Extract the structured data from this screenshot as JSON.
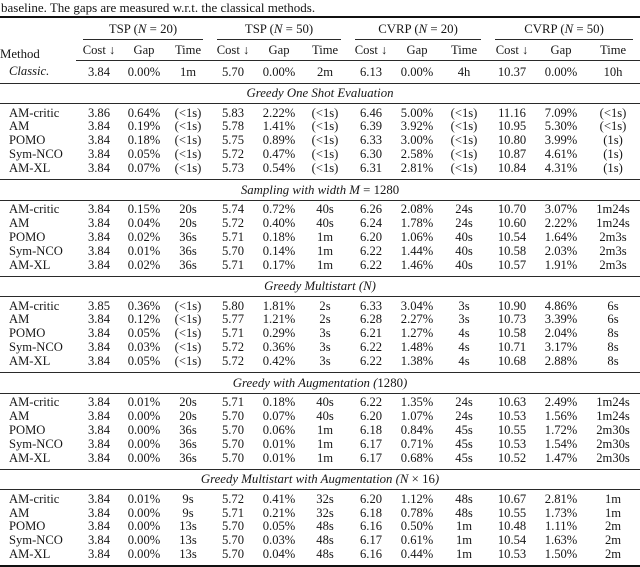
{
  "caption": "baseline. The gaps are measured w.r.t. the classical methods.",
  "table": {
    "method_header": "Method",
    "groups": [
      {
        "label": "TSP (N = 20)"
      },
      {
        "label": "TSP (N = 50)"
      },
      {
        "label": "CVRP (N = 20)"
      },
      {
        "label": "CVRP (N = 50)"
      }
    ],
    "subheaders": [
      "Cost ↓",
      "Gap",
      "Time"
    ],
    "baseline_row": {
      "method": "Classic.",
      "values": [
        "3.84",
        "0.00%",
        "1m",
        "5.70",
        "0.00%",
        "2m",
        "6.13",
        "0.00%",
        "4h",
        "10.37",
        "0.00%",
        "10h"
      ]
    },
    "sections": [
      {
        "title": "Greedy One Shot Evaluation",
        "rows": [
          {
            "method": "AM-critic",
            "values": [
              "3.86",
              "0.64%",
              "(<1s)",
              "5.83",
              "2.22%",
              "(<1s)",
              "6.46",
              "5.00%",
              "(<1s)",
              "11.16",
              "7.09%",
              "(<1s)"
            ]
          },
          {
            "method": "AM",
            "values": [
              "3.84",
              "0.19%",
              "(<1s)",
              "5.78",
              "1.41%",
              "(<1s)",
              "6.39",
              "3.92%",
              "(<1s)",
              "10.95",
              "5.30%",
              "(<1s)"
            ]
          },
          {
            "method": "POMO",
            "values": [
              "3.84",
              "0.18%",
              "(<1s)",
              "5.75",
              "0.89%",
              "(<1s)",
              "6.33",
              "3.00%",
              "(<1s)",
              "10.80",
              "3.99%",
              "(1s)"
            ]
          },
          {
            "method": "Sym-NCO",
            "values": [
              "3.84",
              "0.05%",
              "(<1s)",
              "5.72",
              "0.47%",
              "(<1s)",
              "6.30",
              "2.58%",
              "(<1s)",
              "10.87",
              "4.61%",
              "(1s)"
            ]
          },
          {
            "method": "AM-XL",
            "values": [
              "3.84",
              "0.07%",
              "(<1s)",
              "5.73",
              "0.54%",
              "(<1s)",
              "6.31",
              "2.81%",
              "(<1s)",
              "10.84",
              "4.31%",
              "(1s)"
            ]
          }
        ]
      },
      {
        "title": "Sampling with width M = 1280",
        "rows": [
          {
            "method": "AM-critic",
            "values": [
              "3.84",
              "0.15%",
              "20s",
              "5.74",
              "0.72%",
              "40s",
              "6.26",
              "2.08%",
              "24s",
              "10.70",
              "3.07%",
              "1m24s"
            ]
          },
          {
            "method": "AM",
            "values": [
              "3.84",
              "0.04%",
              "20s",
              "5.72",
              "0.40%",
              "40s",
              "6.24",
              "1.78%",
              "24s",
              "10.60",
              "2.22%",
              "1m24s"
            ]
          },
          {
            "method": "POMO",
            "values": [
              "3.84",
              "0.02%",
              "36s",
              "5.71",
              "0.18%",
              "1m",
              "6.20",
              "1.06%",
              "40s",
              "10.54",
              "1.64%",
              "2m3s"
            ]
          },
          {
            "method": "Sym-NCO",
            "values": [
              "3.84",
              "0.01%",
              "36s",
              "5.70",
              "0.14%",
              "1m",
              "6.22",
              "1.44%",
              "40s",
              "10.58",
              "2.03%",
              "2m3s"
            ]
          },
          {
            "method": "AM-XL",
            "values": [
              "3.84",
              "0.02%",
              "36s",
              "5.71",
              "0.17%",
              "1m",
              "6.22",
              "1.46%",
              "40s",
              "10.57",
              "1.91%",
              "2m3s"
            ]
          }
        ]
      },
      {
        "title": "Greedy Multistart (N)",
        "rows": [
          {
            "method": "AM-critic",
            "values": [
              "3.85",
              "0.36%",
              "(<1s)",
              "5.80",
              "1.81%",
              "2s",
              "6.33",
              "3.04%",
              "3s",
              "10.90",
              "4.86%",
              "6s"
            ]
          },
          {
            "method": "AM",
            "values": [
              "3.84",
              "0.12%",
              "(<1s)",
              "5.77",
              "1.21%",
              "2s",
              "6.28",
              "2.27%",
              "3s",
              "10.73",
              "3.39%",
              "6s"
            ]
          },
          {
            "method": "POMO",
            "values": [
              "3.84",
              "0.05%",
              "(<1s)",
              "5.71",
              "0.29%",
              "3s",
              "6.21",
              "1.27%",
              "4s",
              "10.58",
              "2.04%",
              "8s"
            ]
          },
          {
            "method": "Sym-NCO",
            "values": [
              "3.84",
              "0.03%",
              "(<1s)",
              "5.72",
              "0.36%",
              "3s",
              "6.22",
              "1.48%",
              "4s",
              "10.71",
              "3.17%",
              "8s"
            ]
          },
          {
            "method": "AM-XL",
            "values": [
              "3.84",
              "0.05%",
              "(<1s)",
              "5.72",
              "0.42%",
              "3s",
              "6.22",
              "1.38%",
              "4s",
              "10.68",
              "2.88%",
              "8s"
            ]
          }
        ]
      },
      {
        "title": "Greedy with Augmentation (1280)",
        "rows": [
          {
            "method": "AM-critic",
            "values": [
              "3.84",
              "0.01%",
              "20s",
              "5.71",
              "0.18%",
              "40s",
              "6.22",
              "1.35%",
              "24s",
              "10.63",
              "2.49%",
              "1m24s"
            ]
          },
          {
            "method": "AM",
            "values": [
              "3.84",
              "0.00%",
              "20s",
              "5.70",
              "0.07%",
              "40s",
              "6.20",
              "1.07%",
              "24s",
              "10.53",
              "1.56%",
              "1m24s"
            ]
          },
          {
            "method": "POMO",
            "values": [
              "3.84",
              "0.00%",
              "36s",
              "5.70",
              "0.06%",
              "1m",
              "6.18",
              "0.84%",
              "45s",
              "10.55",
              "1.72%",
              "2m30s"
            ]
          },
          {
            "method": "Sym-NCO",
            "values": [
              "3.84",
              "0.00%",
              "36s",
              "5.70",
              "0.01%",
              "1m",
              "6.17",
              "0.71%",
              "45s",
              "10.53",
              "1.54%",
              "2m30s"
            ]
          },
          {
            "method": "AM-XL",
            "values": [
              "3.84",
              "0.00%",
              "36s",
              "5.70",
              "0.01%",
              "1m",
              "6.17",
              "0.68%",
              "45s",
              "10.52",
              "1.47%",
              "2m30s"
            ]
          }
        ]
      },
      {
        "title": "Greedy Multistart with Augmentation (N × 16)",
        "rows": [
          {
            "method": "AM-critic",
            "values": [
              "3.84",
              "0.01%",
              "9s",
              "5.72",
              "0.41%",
              "32s",
              "6.20",
              "1.12%",
              "48s",
              "10.67",
              "2.81%",
              "1m"
            ]
          },
          {
            "method": "AM",
            "values": [
              "3.84",
              "0.00%",
              "9s",
              "5.71",
              "0.21%",
              "32s",
              "6.18",
              "0.78%",
              "48s",
              "10.55",
              "1.73%",
              "1m"
            ]
          },
          {
            "method": "POMO",
            "values": [
              "3.84",
              "0.00%",
              "13s",
              "5.70",
              "0.05%",
              "48s",
              "6.16",
              "0.50%",
              "1m",
              "10.48",
              "1.11%",
              "2m"
            ]
          },
          {
            "method": "Sym-NCO",
            "values": [
              "3.84",
              "0.00%",
              "13s",
              "5.70",
              "0.03%",
              "48s",
              "6.17",
              "0.61%",
              "1m",
              "10.54",
              "1.63%",
              "2m"
            ]
          },
          {
            "method": "AM-XL",
            "values": [
              "3.84",
              "0.00%",
              "13s",
              "5.70",
              "0.04%",
              "48s",
              "6.16",
              "0.44%",
              "1m",
              "10.53",
              "1.50%",
              "2m"
            ]
          }
        ]
      }
    ]
  }
}
